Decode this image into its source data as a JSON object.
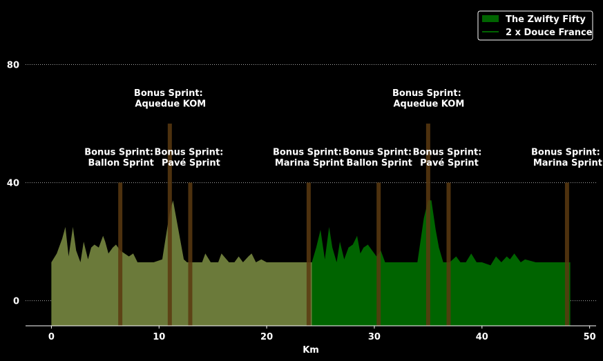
{
  "chart_data": {
    "type": "area",
    "title": "",
    "xlabel": "Km",
    "ylabel": "",
    "xlim": [
      -2.4,
      50.6
    ],
    "ylim": [
      -8.5,
      100
    ],
    "xticks": [
      0,
      10,
      20,
      30,
      40,
      50
    ],
    "yticks": [
      0,
      40,
      80
    ],
    "grid": "horizontal-dotted",
    "legend_position": "top-right",
    "colors": {
      "background": "#000000",
      "zwifty_fifty": "#006400",
      "douce_france": "#6b7a3a",
      "sprint_bar": "#5a3a10",
      "grid": "#aaaaaa"
    },
    "series": [
      {
        "name": "The Zwifty Fifty",
        "kind": "filled-area",
        "x": [
          0,
          24.2,
          24.6,
          25.0,
          25.4,
          25.8,
          26.1,
          26.5,
          26.8,
          27.2,
          27.6,
          28.0,
          28.4,
          28.7,
          29.0,
          29.4,
          29.8,
          30.2,
          30.6,
          31.0,
          31.5,
          32.0,
          34.0,
          34.6,
          35.0,
          35.3,
          35.7,
          36.0,
          36.4,
          37.0,
          37.6,
          38.0,
          38.5,
          39.0,
          39.5,
          40.0,
          40.8,
          41.3,
          41.8,
          42.3,
          42.6,
          43.0,
          43.6,
          44.0,
          45.0,
          48.2
        ],
        "y": [
          13,
          13,
          18,
          24,
          14,
          25,
          18,
          13,
          20,
          14,
          18,
          19,
          22,
          16,
          18,
          19,
          17,
          15,
          17,
          13,
          13,
          13,
          13,
          28,
          34,
          34,
          24,
          18,
          13,
          13,
          15,
          13,
          13,
          16,
          13,
          13,
          12,
          15,
          13,
          15,
          14,
          16,
          13,
          14,
          13,
          13
        ]
      },
      {
        "name": "2 x Douce France",
        "kind": "line",
        "x": [
          0,
          0.5,
          1.0,
          1.3,
          1.6,
          2.0,
          2.3,
          2.7,
          3.0,
          3.4,
          3.7,
          4.0,
          4.4,
          4.8,
          5.0,
          5.3,
          5.7,
          6.0,
          6.4,
          6.8,
          7.2,
          7.6,
          8.0,
          9.5,
          10.3,
          10.6,
          11.0,
          11.3,
          11.6,
          12.0,
          12.3,
          12.6,
          13.0,
          14.0,
          14.3,
          14.8,
          15.5,
          15.8,
          16.5,
          17.0,
          17.4,
          17.8,
          18.3,
          18.6,
          19.0,
          19.5,
          20.0,
          24.2
        ],
        "y": [
          13,
          16,
          21,
          25,
          15,
          25,
          17,
          13,
          20,
          14,
          18,
          19,
          18,
          22,
          20,
          16,
          18,
          19,
          17,
          16,
          15,
          16,
          13,
          13,
          14,
          21,
          30,
          34,
          28,
          20,
          14,
          13,
          13,
          13,
          16,
          13,
          13,
          16,
          13,
          13,
          15,
          13,
          15,
          16,
          13,
          14,
          13,
          13
        ]
      }
    ],
    "sprint_bars": [
      {
        "x": 6.4,
        "value": 40,
        "label": "Bonus Sprint:\nBallon Sprint"
      },
      {
        "x": 11.0,
        "value": 60,
        "label": "Bonus Sprint:\nAquedue KOM"
      },
      {
        "x": 12.9,
        "value": 40,
        "label": "Bonus Sprint:\nPavé Sprint"
      },
      {
        "x": 23.9,
        "value": 40,
        "label": "Bonus Sprint:\nMarina Sprint"
      },
      {
        "x": 30.4,
        "value": 40,
        "label": "Bonus Sprint:\nBallon Sprint"
      },
      {
        "x": 35.0,
        "value": 60,
        "label": "Bonus Sprint:\nAquedue KOM"
      },
      {
        "x": 36.9,
        "value": 40,
        "label": "Bonus Sprint:\nPavé Sprint"
      },
      {
        "x": 47.9,
        "value": 40,
        "label": "Bonus Sprint:\nMarina Sprint"
      }
    ]
  }
}
